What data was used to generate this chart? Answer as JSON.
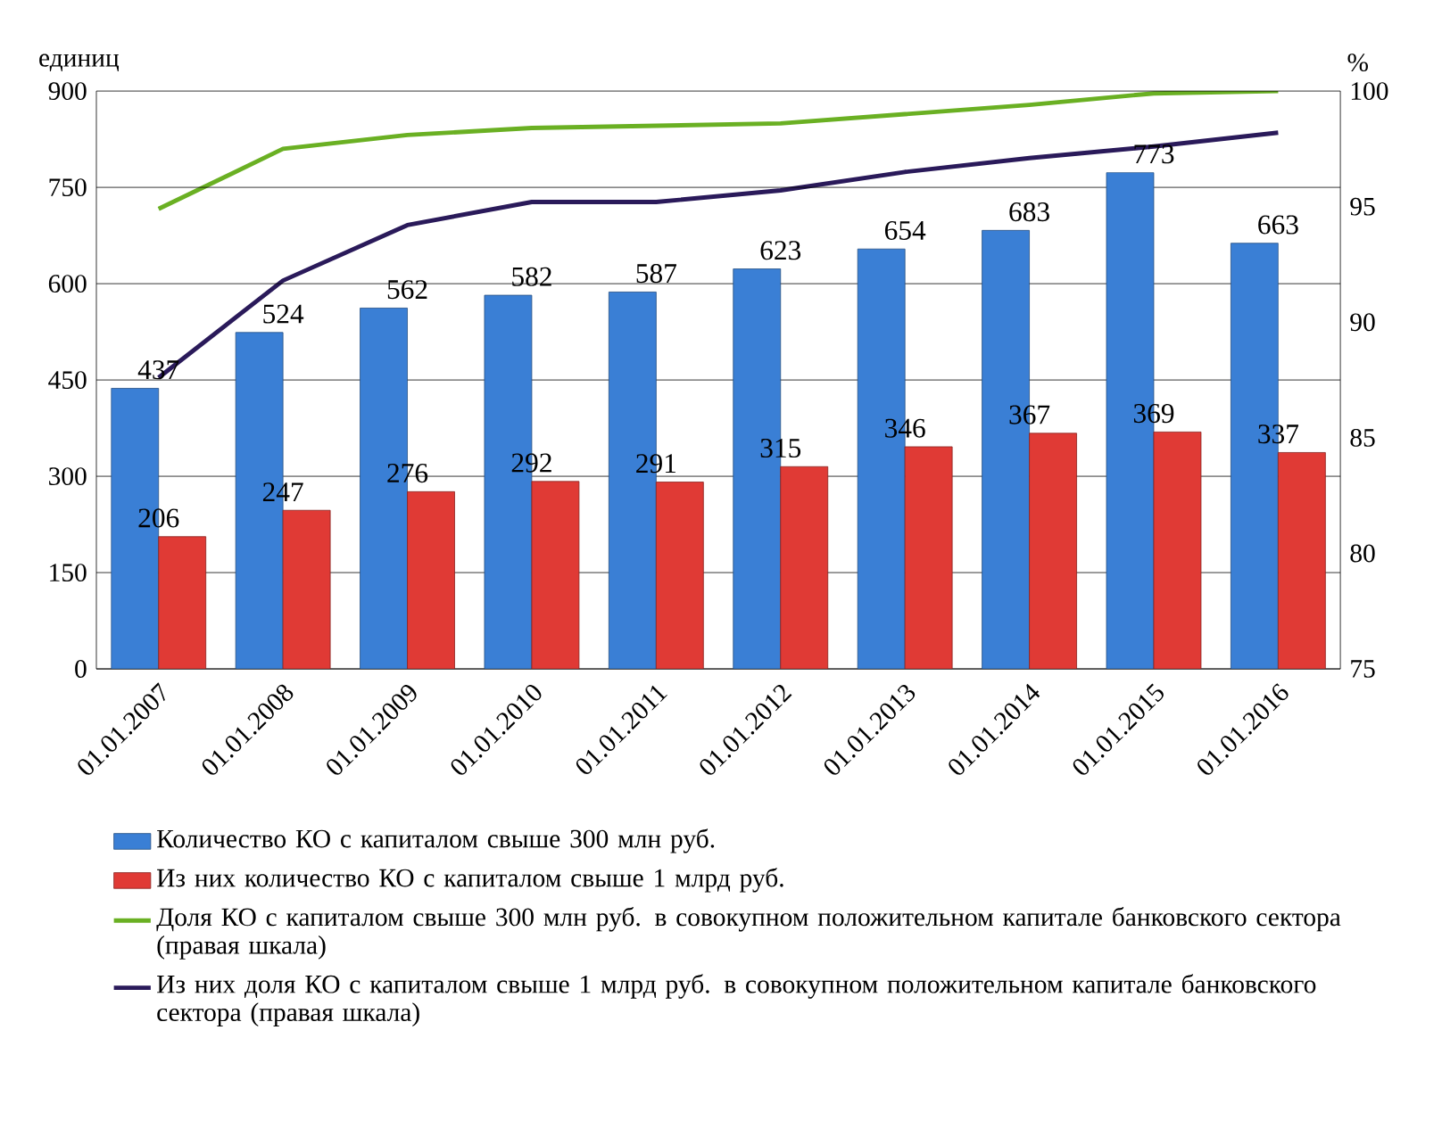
{
  "chart_data": {
    "type": "bar",
    "ylabel": "единиц",
    "y2label": "%",
    "categories": [
      "01.01.2007",
      "01.01.2008",
      "01.01.2009",
      "01.01.2010",
      "01.01.2011",
      "01.01.2012",
      "01.01.2013",
      "01.01.2014",
      "01.01.2015",
      "01.01.2016"
    ],
    "series": [
      {
        "name": "Количество КО с капиталом свыше 300 млн руб.",
        "color": "#3a7fd5",
        "values": [
          437,
          524,
          562,
          582,
          587,
          623,
          654,
          683,
          773,
          663
        ],
        "value_labels": [
          "437",
          "524",
          "562",
          "582",
          "587",
          "623",
          "654",
          "683",
          "773",
          "663"
        ]
      },
      {
        "name": "Из них количество КО с капиталом свыше 1 млрд руб.",
        "color": "#e03a35",
        "values": [
          206,
          247,
          276,
          292,
          291,
          315,
          346,
          367,
          369,
          337
        ],
        "value_labels": [
          "206",
          "247",
          "276",
          "292",
          "291",
          "315",
          "346",
          "367",
          "369",
          "337"
        ]
      },
      {
        "name": "Доля КО с капиталом свыше 300 млн руб. в совокупном положительном капитале банковского сектора (правая шкала)",
        "type": "line",
        "axis": "y2",
        "color": "#6ab023",
        "values": [
          94.9,
          97.5,
          98.1,
          98.4,
          98.5,
          98.6,
          99.0,
          99.4,
          99.9,
          100
        ]
      },
      {
        "name": "Из них доля КО с капиталом свыше 1 млрд руб. в совокупном положительном капитале банковского сектора (правая шкала)",
        "type": "line",
        "axis": "y2",
        "color": "#2a1a5a",
        "values": [
          87.6,
          91.8,
          94.2,
          95.2,
          95.2,
          95.7,
          96.5,
          97.1,
          97.6,
          98.2
        ]
      }
    ],
    "ylim": [
      0,
      900
    ],
    "yticks": [
      0,
      150,
      300,
      450,
      600,
      750,
      900
    ],
    "y2lim": [
      75,
      100
    ],
    "y2ticks": [
      75,
      80,
      85,
      90,
      95,
      100
    ],
    "grid": "y",
    "legend": "bottom",
    "marker": "none",
    "line_style": "solid"
  }
}
